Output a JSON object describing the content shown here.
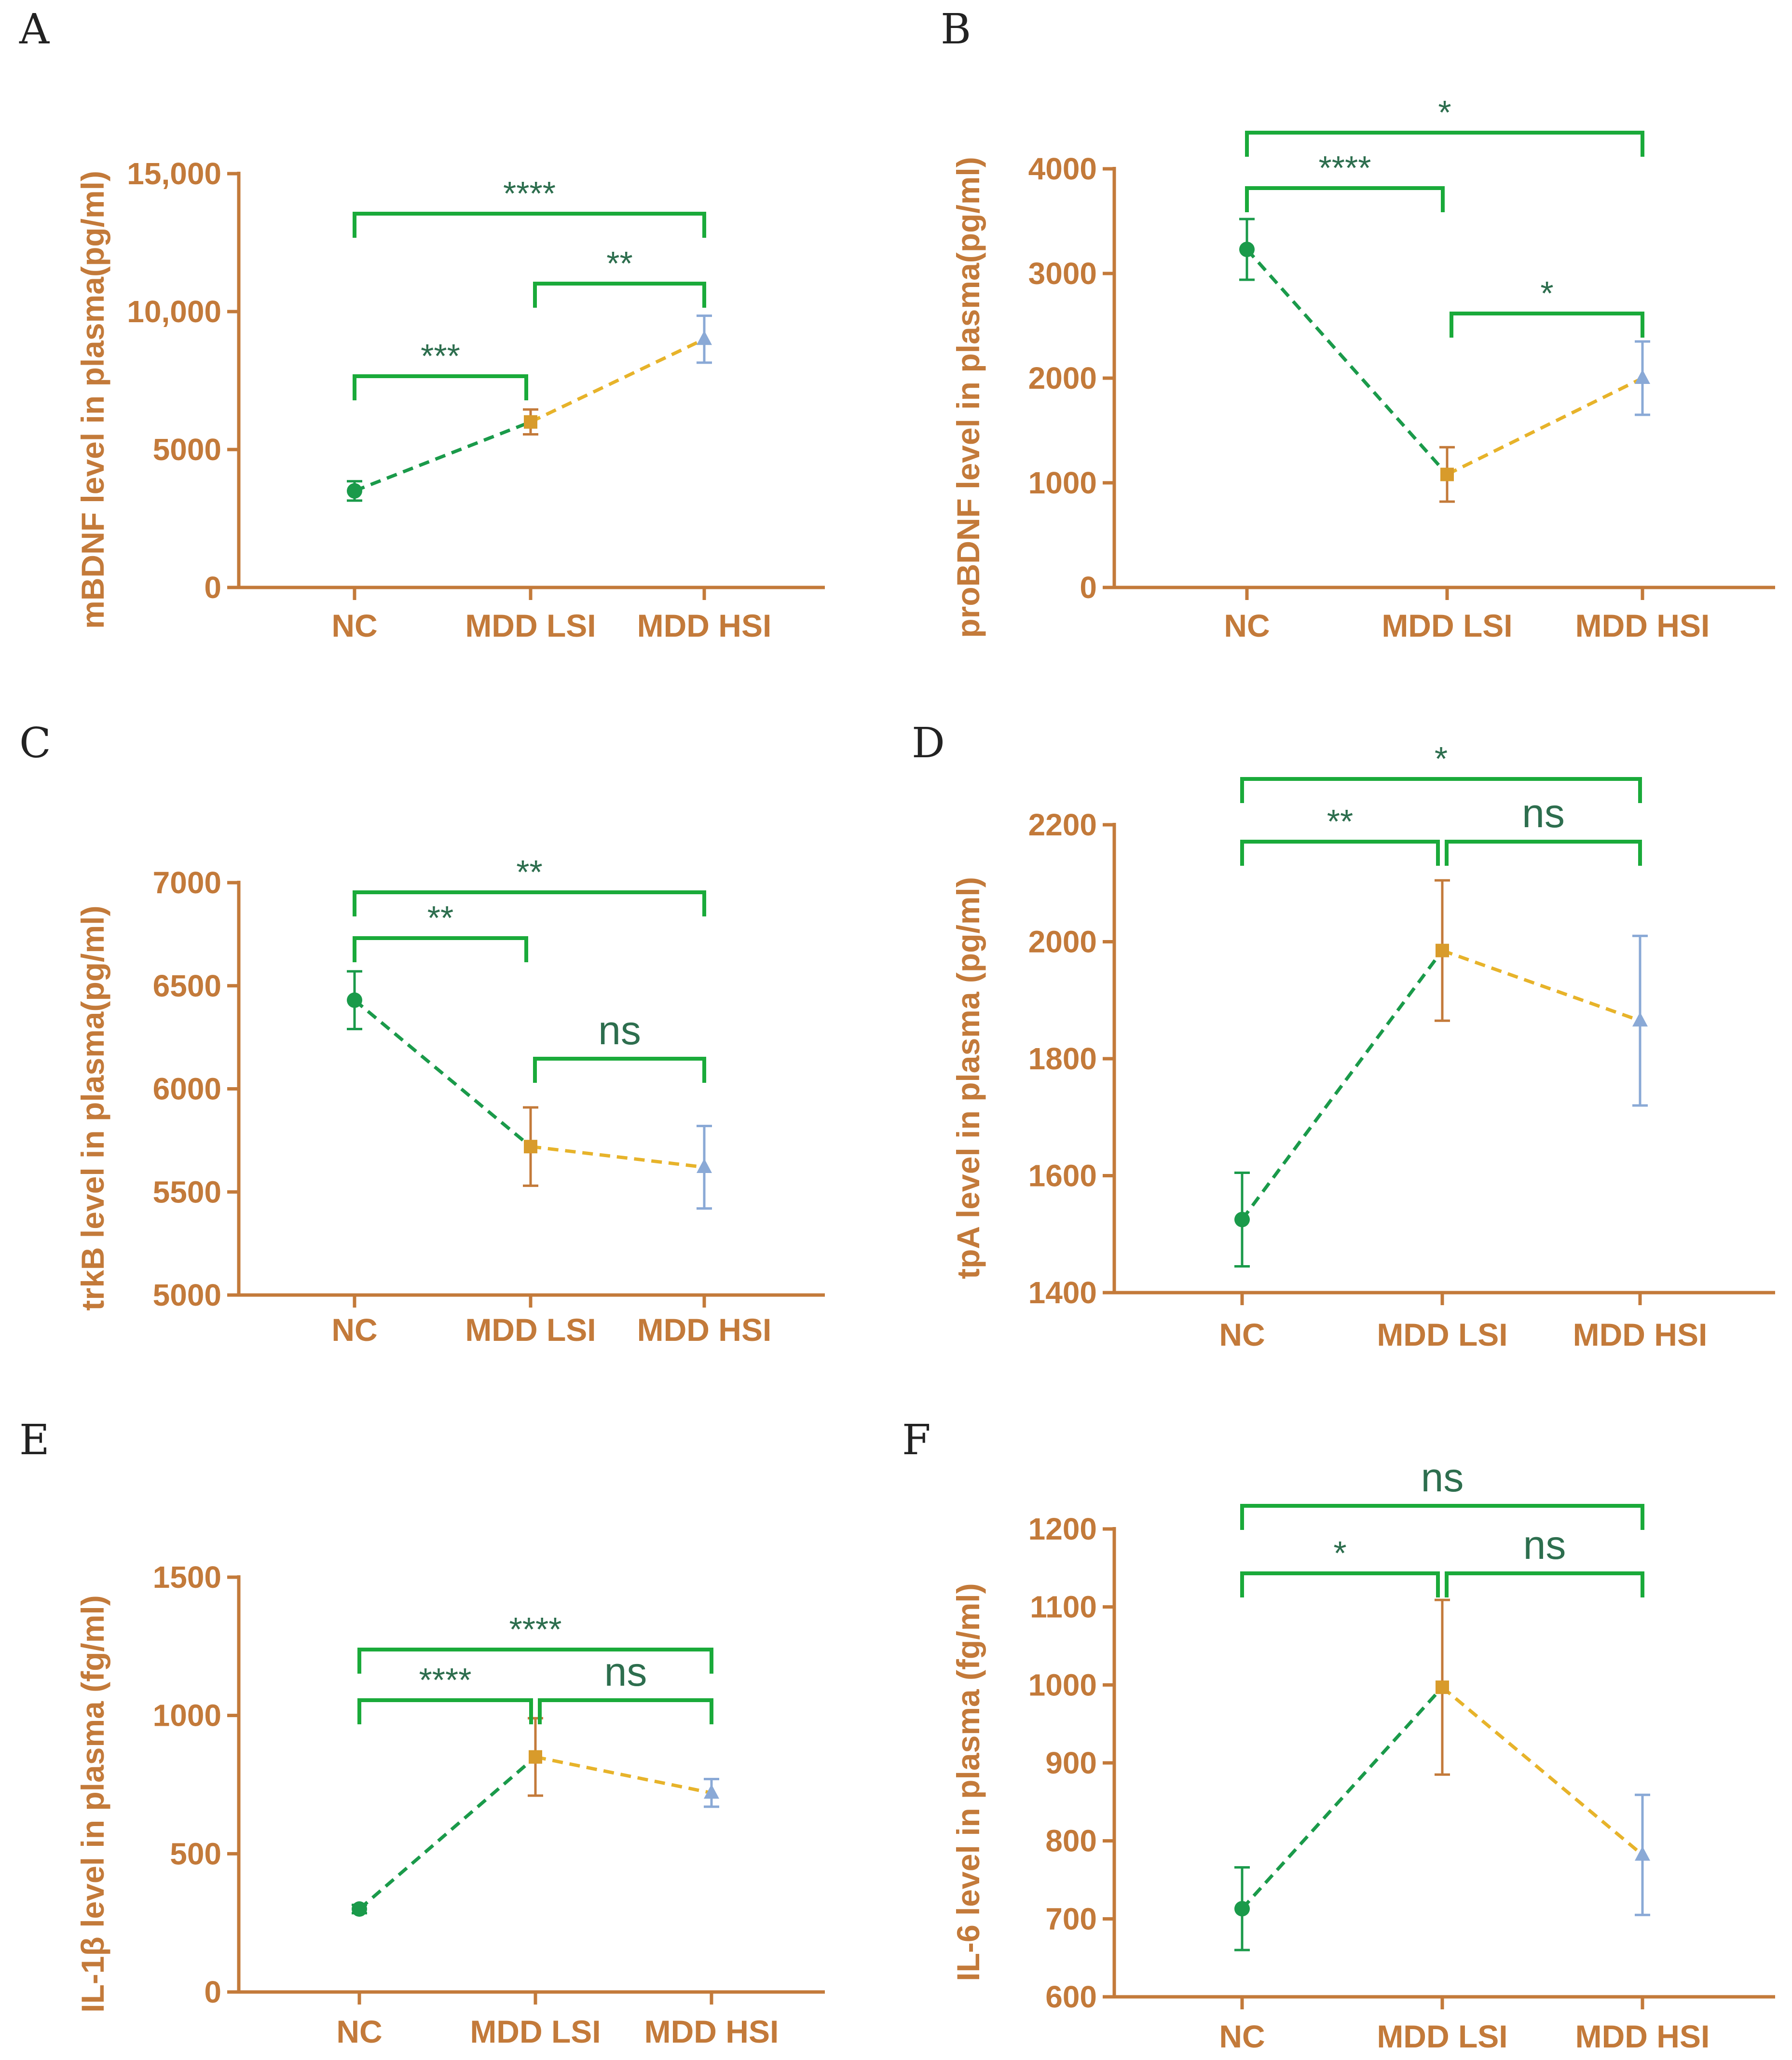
{
  "colors": {
    "axis": "#c37a3a",
    "bracket": "#1aaa3a",
    "sig_text": "#2d6e4e",
    "nc": "#1a9a4a",
    "lsi_line": "#e7b32a",
    "hsi": "#8aa9d6"
  },
  "chart_data": [
    {
      "panel": "A",
      "type": "line",
      "ylabel": "mBDNF level in plasma(pg/ml)",
      "categories": [
        "NC",
        "MDD LSI",
        "MDD HSI"
      ],
      "ylim": [
        0,
        15000
      ],
      "yticks": [
        0,
        5000,
        10000,
        15000
      ],
      "ytick_labels": [
        "0",
        "5000",
        "10,000",
        "15,000"
      ],
      "values": [
        3500,
        6000,
        9000
      ],
      "errors": [
        350,
        450,
        850
      ],
      "significance": [
        {
          "from": 0,
          "to": 1,
          "label": "***"
        },
        {
          "from": 1,
          "to": 2,
          "label": "**"
        },
        {
          "from": 0,
          "to": 2,
          "label": "****"
        }
      ]
    },
    {
      "panel": "B",
      "type": "line",
      "ylabel": "proBDNF level in plasma(pg/ml)",
      "categories": [
        "NC",
        "MDD LSI",
        "MDD HSI"
      ],
      "ylim": [
        0,
        4000
      ],
      "yticks": [
        0,
        1000,
        2000,
        3000,
        4000
      ],
      "ytick_labels": [
        "0",
        "1000",
        "2000",
        "3000",
        "4000"
      ],
      "values": [
        3230,
        1080,
        2000
      ],
      "errors": [
        290,
        260,
        350
      ],
      "significance": [
        {
          "from": 0,
          "to": 1,
          "label": "****"
        },
        {
          "from": 1,
          "to": 2,
          "label": "*"
        },
        {
          "from": 0,
          "to": 2,
          "label": "*"
        }
      ]
    },
    {
      "panel": "C",
      "type": "line",
      "ylabel": "trkB level in plasma(pg/ml)",
      "categories": [
        "NC",
        "MDD LSI",
        "MDD HSI"
      ],
      "ylim": [
        5000,
        7000
      ],
      "yticks": [
        5000,
        5500,
        6000,
        6500,
        7000
      ],
      "ytick_labels": [
        "5000",
        "5500",
        "6000",
        "6500",
        "7000"
      ],
      "values": [
        6430,
        5720,
        5620
      ],
      "errors": [
        140,
        190,
        200
      ],
      "significance": [
        {
          "from": 0,
          "to": 1,
          "label": "**"
        },
        {
          "from": 1,
          "to": 2,
          "label": "ns"
        },
        {
          "from": 0,
          "to": 2,
          "label": "**"
        }
      ]
    },
    {
      "panel": "D",
      "type": "line",
      "ylabel": "tpA level in plasma (pg/ml)",
      "categories": [
        "NC",
        "MDD LSI",
        "MDD HSI"
      ],
      "ylim": [
        1400,
        2200
      ],
      "yticks": [
        1400,
        1600,
        1800,
        2000,
        2200
      ],
      "ytick_labels": [
        "1400",
        "1600",
        "1800",
        "2000",
        "2200"
      ],
      "values": [
        1525,
        1985,
        1865
      ],
      "errors": [
        80,
        120,
        145
      ],
      "significance": [
        {
          "from": 0,
          "to": 1,
          "label": "**"
        },
        {
          "from": 1,
          "to": 2,
          "label": "ns"
        },
        {
          "from": 0,
          "to": 2,
          "label": "*"
        }
      ]
    },
    {
      "panel": "E",
      "type": "line",
      "ylabel": "IL-1β level in plasma (fg/ml)",
      "categories": [
        "NC",
        "MDD LSI",
        "MDD HSI"
      ],
      "ylim": [
        0,
        1500
      ],
      "yticks": [
        0,
        500,
        1000,
        1500
      ],
      "ytick_labels": [
        "0",
        "500",
        "1000",
        "1500"
      ],
      "values": [
        300,
        850,
        720
      ],
      "errors": [
        15,
        140,
        50
      ],
      "significance": [
        {
          "from": 0,
          "to": 1,
          "label": "****"
        },
        {
          "from": 1,
          "to": 2,
          "label": "ns"
        },
        {
          "from": 0,
          "to": 2,
          "label": "****"
        }
      ]
    },
    {
      "panel": "F",
      "type": "line",
      "ylabel": "IL-6 level in plasma (fg/ml)",
      "categories": [
        "NC",
        "MDD LSI",
        "MDD HSI"
      ],
      "ylim": [
        600,
        1200
      ],
      "yticks": [
        600,
        700,
        800,
        900,
        1000,
        1100,
        1200
      ],
      "ytick_labels": [
        "600",
        "700",
        "800",
        "900",
        "1000",
        "1100",
        "1200"
      ],
      "values": [
        713,
        997,
        782
      ],
      "errors": [
        53,
        112,
        77
      ],
      "significance": [
        {
          "from": 0,
          "to": 1,
          "label": "*"
        },
        {
          "from": 1,
          "to": 2,
          "label": "ns"
        },
        {
          "from": 0,
          "to": 2,
          "label": "ns"
        }
      ]
    }
  ]
}
